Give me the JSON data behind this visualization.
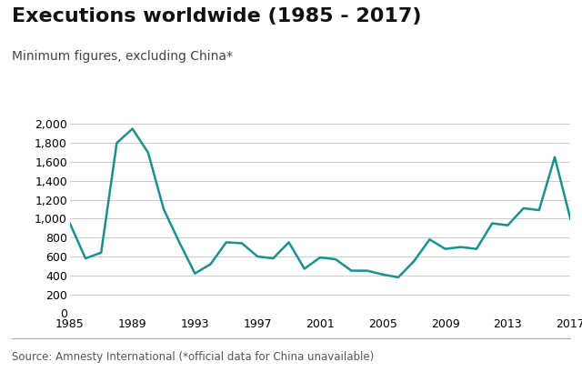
{
  "title": "Executions worldwide (1985 - 2017)",
  "subtitle": "Minimum figures, excluding China*",
  "source": "Source: Amnesty International (*official data for China unavailable)",
  "line_color": "#1a9090",
  "background_color": "#ffffff",
  "grid_color": "#cccccc",
  "years": [
    1985,
    1986,
    1987,
    1988,
    1989,
    1990,
    1991,
    1992,
    1993,
    1994,
    1995,
    1996,
    1997,
    1998,
    1999,
    2000,
    2001,
    2002,
    2003,
    2004,
    2005,
    2006,
    2007,
    2008,
    2009,
    2010,
    2011,
    2012,
    2013,
    2014,
    2015,
    2016,
    2017
  ],
  "values": [
    950,
    580,
    640,
    1800,
    1950,
    1700,
    1100,
    750,
    420,
    520,
    750,
    740,
    600,
    580,
    750,
    470,
    590,
    570,
    450,
    450,
    410,
    380,
    550,
    780,
    680,
    700,
    680,
    950,
    930,
    1110,
    1090,
    1650,
    1000
  ],
  "ylim": [
    0,
    2100
  ],
  "yticks": [
    0,
    200,
    400,
    600,
    800,
    1000,
    1200,
    1400,
    1600,
    1800,
    2000
  ],
  "xticks": [
    1985,
    1989,
    1993,
    1997,
    2001,
    2005,
    2009,
    2013,
    2017
  ],
  "title_fontsize": 16,
  "subtitle_fontsize": 10,
  "tick_fontsize": 9,
  "source_fontsize": 8.5,
  "line_width": 1.8
}
